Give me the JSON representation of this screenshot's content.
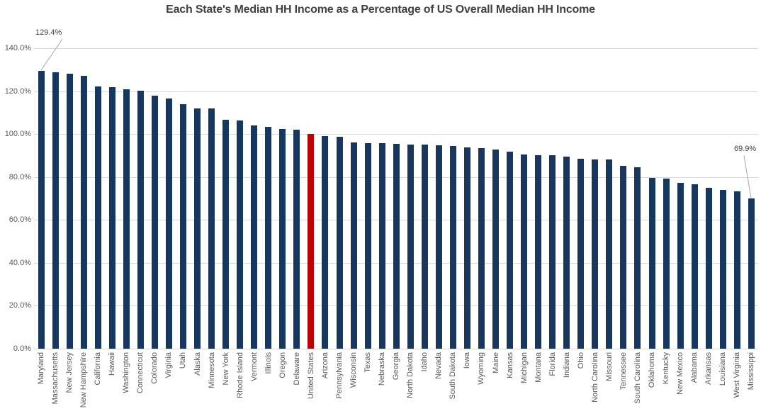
{
  "chart_data": {
    "type": "bar",
    "title": "Each State's Median HH Income as a Percentage of US Overall Median HH Income",
    "xlabel": "",
    "ylabel": "",
    "ylim": [
      0,
      140
    ],
    "ytick_step": 20,
    "ytick_labels": [
      "0.0%",
      "20.0%",
      "40.0%",
      "60.0%",
      "80.0%",
      "100.0%",
      "120.0%",
      "140.0%"
    ],
    "grid": true,
    "legend": "none",
    "categories": [
      "Maryland",
      "Massachusetts",
      "New Jersey",
      "New Hampshire",
      "California",
      "Hawaii",
      "Washington",
      "Connecticut",
      "Colorado",
      "Virginia",
      "Utah",
      "Alaska",
      "Minnesota",
      "New York",
      "Rhode Island",
      "Vermont",
      "Illinois",
      "Oregon",
      "Delaware",
      "United States",
      "Arizona",
      "Pennsylvania",
      "Wisconsin",
      "Texas",
      "Nebraska",
      "Georgia",
      "North Dakota",
      "Idaho",
      "Nevada",
      "South Dakota",
      "Iowa",
      "Wyoming",
      "Maine",
      "Kansas",
      "Michigan",
      "Montana",
      "Florida",
      "Indiana",
      "Ohio",
      "North Carolina",
      "Missouri",
      "Tennessee",
      "South Carolina",
      "Oklahoma",
      "Kentucky",
      "New Mexico",
      "Alabama",
      "Arkansas",
      "Louisiana",
      "West Virginia",
      "Mississippi"
    ],
    "values": [
      129.4,
      128.8,
      128.0,
      127.2,
      122.3,
      122.0,
      121.0,
      120.3,
      118.0,
      116.4,
      113.9,
      112.1,
      111.8,
      106.5,
      106.2,
      103.9,
      103.5,
      102.5,
      101.9,
      100.0,
      99.1,
      98.7,
      96.1,
      95.8,
      95.7,
      95.5,
      95.2,
      95.0,
      94.8,
      94.6,
      93.7,
      93.4,
      92.7,
      91.9,
      90.6,
      90.3,
      90.2,
      89.4,
      88.5,
      88.3,
      88.2,
      85.2,
      84.5,
      79.6,
      79.1,
      77.2,
      76.7,
      75.0,
      74.1,
      73.2,
      69.9
    ],
    "highlight_category": "United States",
    "annotations": [
      {
        "category": "Maryland",
        "label": "129.4%"
      },
      {
        "category": "Mississippi",
        "label": "69.9%"
      }
    ]
  },
  "colors": {
    "bar": "#17375e",
    "highlight_bar": "#c00000",
    "gridline": "#d9d9d9",
    "axis_text": "#595959",
    "title_text": "#404040",
    "leader_line": "#a6a6a6"
  }
}
